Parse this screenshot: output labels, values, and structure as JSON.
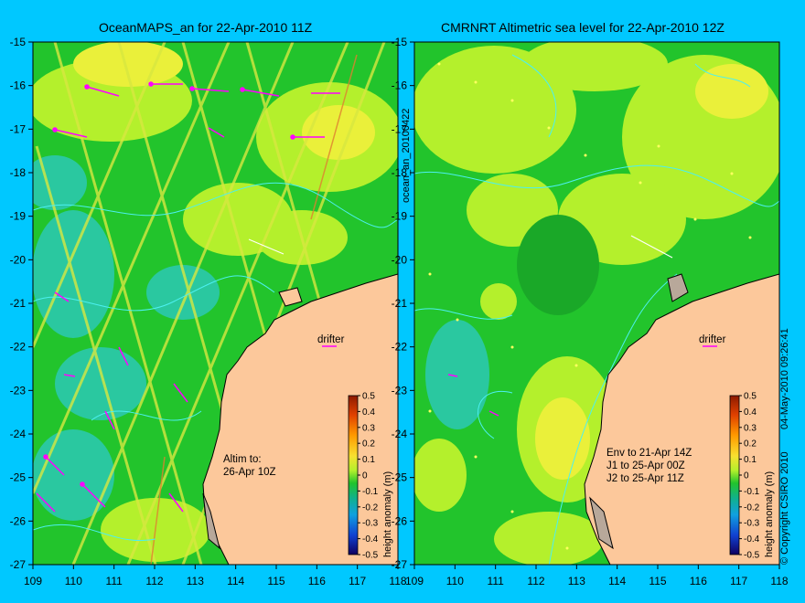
{
  "left_panel": {
    "title": "OceanMAPS_an for 22-Apr-2010 11Z",
    "side_label": "ocean_an_20100422",
    "note_lines": [
      "Altim to:",
      "26-Apr 10Z"
    ],
    "drifter_label": "drifter"
  },
  "right_panel": {
    "title": "CMRNRT Altimetric sea level  for 22-Apr-2010 12Z",
    "side_label": "04-May-2010 09:26:41",
    "copyright": "© Copyright CSIRO 2010",
    "note_lines": [
      "Env to 21-Apr 14Z",
      "J1 to 25-Apr 00Z",
      "J2 to 25-Apr 11Z"
    ],
    "drifter_label": "drifter"
  },
  "axes": {
    "lon_ticks": [
      "109",
      "110",
      "111",
      "112",
      "113",
      "114",
      "115",
      "116",
      "117",
      "118"
    ],
    "lat_ticks": [
      "-15",
      "-16",
      "-17",
      "-18",
      "-19",
      "-20",
      "-21",
      "-22",
      "-23",
      "-24",
      "-25",
      "-26",
      "-27"
    ]
  },
  "colorbar": {
    "label": "height anomaly (m)",
    "ticks": [
      "0.5",
      "0.4",
      "0.3",
      "0.2",
      "0.1",
      "0",
      "-0.1",
      "-0.2",
      "-0.3",
      "-0.4",
      "-0.5"
    ]
  },
  "colors": {
    "background": "#00c8ff",
    "land": "#fcc89b",
    "sea_green": "#22c42c",
    "sea_light": "#b4f02c",
    "sea_yellow": "#eaf03a",
    "sea_cyan": "#2ac8a0",
    "contour": "#4cf0f0",
    "drifter_arrow": "#ff00ff"
  }
}
